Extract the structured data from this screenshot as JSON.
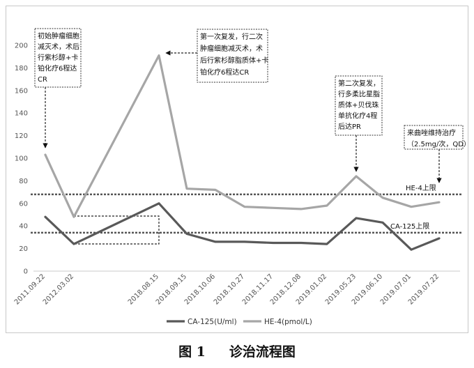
{
  "chart_data": {
    "type": "line",
    "categories": [
      "2011.09.22",
      "2012.03.02",
      "2018.08.15",
      "2018.09.15",
      "2018.10.06",
      "2018.10.27",
      "2018.11.17",
      "2018.12.08",
      "2019.01.02",
      "2019.05.23",
      "2019.06.10",
      "2019.07.01",
      "2019.07.22"
    ],
    "series": [
      {
        "name": "CA-125(U/ml)",
        "color": "#595959",
        "values": [
          48,
          24,
          60,
          33,
          26,
          26,
          25,
          25,
          24,
          47,
          43,
          19,
          29
        ]
      },
      {
        "name": "HE-4(pmol/L)",
        "color": "#a6a6a6",
        "values": [
          103,
          48,
          191,
          73,
          72,
          57,
          56,
          55,
          58,
          84,
          65,
          57,
          61
        ]
      }
    ],
    "ylim": [
      0,
      200
    ],
    "yticks": [
      0,
      20,
      40,
      60,
      80,
      100,
      120,
      140,
      160,
      180,
      200
    ],
    "grid": false,
    "legend_position": "bottom",
    "thresholds": [
      {
        "label": "HE-4上限",
        "value": 68,
        "color": "#555555"
      },
      {
        "label": "CA-125上限",
        "value": 34,
        "color": "#555555"
      }
    ],
    "annotations": [
      {
        "lines": [
          "初始肿瘤细胞",
          "减灭术，术后",
          "行紫杉醇+卡",
          "铂化疗6程达",
          "CR"
        ]
      },
      {
        "lines": [
          "第一次复发，行二次",
          "肿瘤细胞减灭术，术",
          "后行紫杉醇脂质体+卡",
          "铂化疗6程达CR"
        ]
      },
      {
        "lines": [
          "第二次复发，",
          "行多柔比星脂",
          "质体+贝伐珠",
          "单抗化疗4程",
          "后达PR"
        ]
      },
      {
        "lines": [
          "来曲唑维持治疗",
          "（2.5mg/次，QD）"
        ]
      }
    ]
  },
  "caption": {
    "figure_no": "图 1",
    "title": "诊治流程图"
  }
}
